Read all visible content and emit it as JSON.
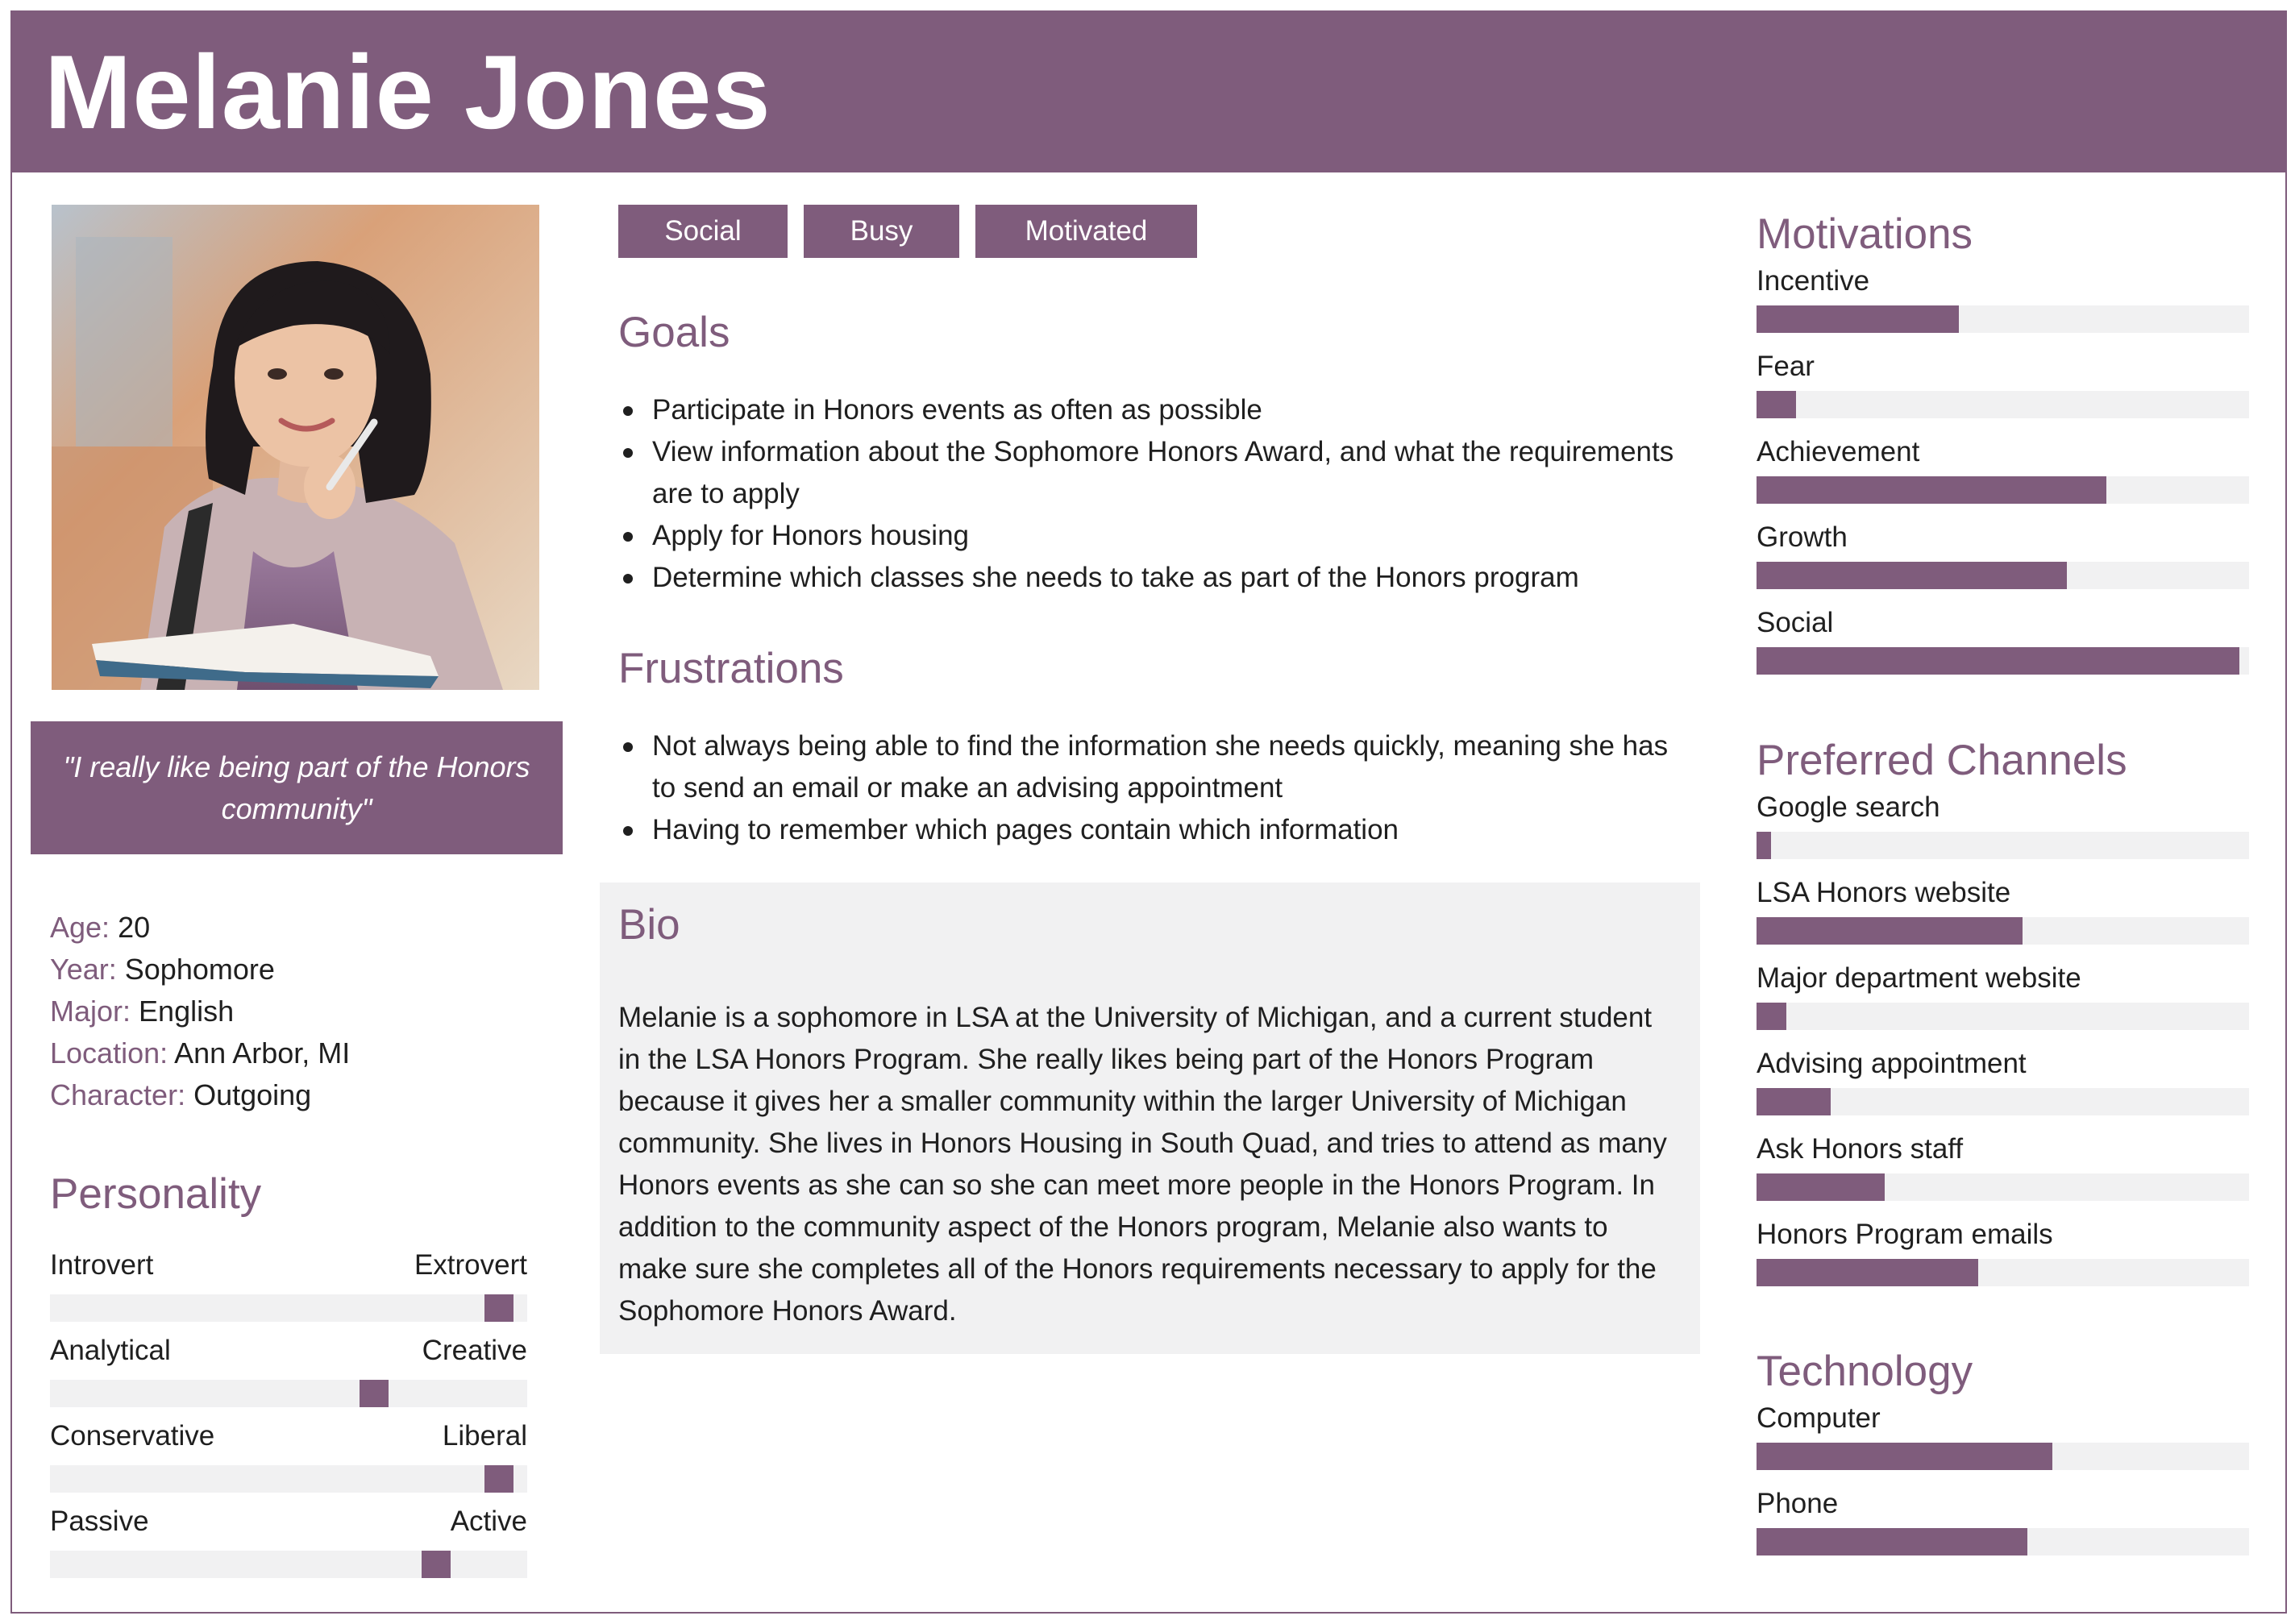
{
  "persona": {
    "name": "Melanie Jones",
    "tags": [
      "Social",
      "Busy",
      "Motivated"
    ],
    "quote": "\"I really like being part of the Honors community\"",
    "profile": [
      {
        "label": "Age:",
        "value": "20"
      },
      {
        "label": "Year:",
        "value": "Sophomore"
      },
      {
        "label": "Major:",
        "value": "English"
      },
      {
        "label": "Location:",
        "value": "Ann Arbor, MI"
      },
      {
        "label": "Character:",
        "value": "Outgoing"
      }
    ],
    "personality": {
      "title": "Personality",
      "traits": [
        {
          "left": "Introvert",
          "right": "Extrovert",
          "position": 0.97
        },
        {
          "left": "Analytical",
          "right": "Creative",
          "position": 0.69
        },
        {
          "left": "Conservative",
          "right": "Liberal",
          "position": 0.97
        },
        {
          "left": "Passive",
          "right": "Active",
          "position": 0.83
        }
      ]
    },
    "goals": {
      "title": "Goals",
      "items": [
        "Participate in Honors events as often as possible",
        "View information about the Sophomore Honors Award, and what the requirements are to apply",
        "Apply for Honors housing",
        "Determine which classes she needs to take as part of the Honors program"
      ]
    },
    "frustrations": {
      "title": "Frustrations",
      "items": [
        "Not always being able to find the information she needs quickly, meaning she has to send an email or make an advising appointment",
        "Having to remember which pages contain which information"
      ]
    },
    "bio": {
      "title": "Bio",
      "text": "Melanie is a sophomore in LSA at the University of Michigan, and a current student in the LSA Honors Program. She really likes being part of the Honors Program because it gives her a smaller community within the larger University of Michigan community. She lives in Honors Housing in South Quad, and tries to attend as many Honors events as she can so she can meet more people in the Honors Program. In addition to the community aspect of the Honors program, Melanie also wants to make sure she completes all of the Honors requirements necessary to apply for the Sophomore Honors Award."
    },
    "motivations": {
      "title": "Motivations",
      "items": [
        {
          "label": "Incentive",
          "level": 0.41
        },
        {
          "label": "Fear",
          "level": 0.08
        },
        {
          "label": "Achievement",
          "level": 0.71
        },
        {
          "label": "Growth",
          "level": 0.63
        },
        {
          "label": "Social",
          "level": 0.98
        }
      ]
    },
    "channels": {
      "title": "Preferred Channels",
      "items": [
        {
          "label": "Google search",
          "level": 0.03
        },
        {
          "label": "LSA Honors website",
          "level": 0.54
        },
        {
          "label": "Major department website",
          "level": 0.06
        },
        {
          "label": "Advising appointment",
          "level": 0.15
        },
        {
          "label": "Ask Honors staff",
          "level": 0.26
        },
        {
          "label": "Honors Program emails",
          "level": 0.45
        }
      ]
    },
    "technology": {
      "title": "Technology",
      "items": [
        {
          "label": "Computer",
          "level": 0.6
        },
        {
          "label": "Phone",
          "level": 0.55
        }
      ]
    }
  },
  "colors": {
    "accent": "#7f5c7c",
    "track": "#f1f1f2",
    "bio_background": "#f1f1f2",
    "text": "#1f1f1f"
  },
  "photo": {
    "icon": "persona-portrait"
  }
}
